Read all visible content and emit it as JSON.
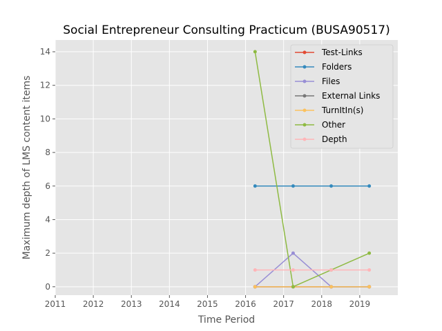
{
  "chart_data": {
    "type": "line",
    "title": "Social Entrepreneur Consulting Practicum (BUSA90517)",
    "xlabel": "Time Period",
    "ylabel": "Maximum depth of LMS content items",
    "xlim": [
      2011,
      2020
    ],
    "ylim": [
      -0.5,
      14.7
    ],
    "xticks": [
      2011,
      2012,
      2013,
      2014,
      2015,
      2016,
      2017,
      2018,
      2019
    ],
    "yticks": [
      0,
      2,
      4,
      6,
      8,
      10,
      12,
      14
    ],
    "grid": true,
    "legend_position": "top-right",
    "x": [
      2016.25,
      2017.25,
      2018.25,
      2019.25
    ],
    "series": [
      {
        "name": "Test-Links",
        "color": "#E24A33",
        "values": [
          0,
          0,
          0,
          0
        ]
      },
      {
        "name": "Folders",
        "color": "#348ABD",
        "values": [
          6,
          6,
          6,
          6
        ]
      },
      {
        "name": "Files",
        "color": "#988ED5",
        "values": [
          0,
          2,
          0,
          0
        ]
      },
      {
        "name": "External Links",
        "color": "#777777",
        "values": [
          0,
          0,
          0,
          0
        ]
      },
      {
        "name": "TurnItIn(s)",
        "color": "#FBC15E",
        "values": [
          0,
          0,
          0,
          0
        ]
      },
      {
        "name": "Other",
        "color": "#8EBA42",
        "values": [
          14,
          0,
          1,
          2
        ]
      },
      {
        "name": "Depth",
        "color": "#FFB5B8",
        "values": [
          1,
          1,
          1,
          1
        ]
      }
    ]
  }
}
